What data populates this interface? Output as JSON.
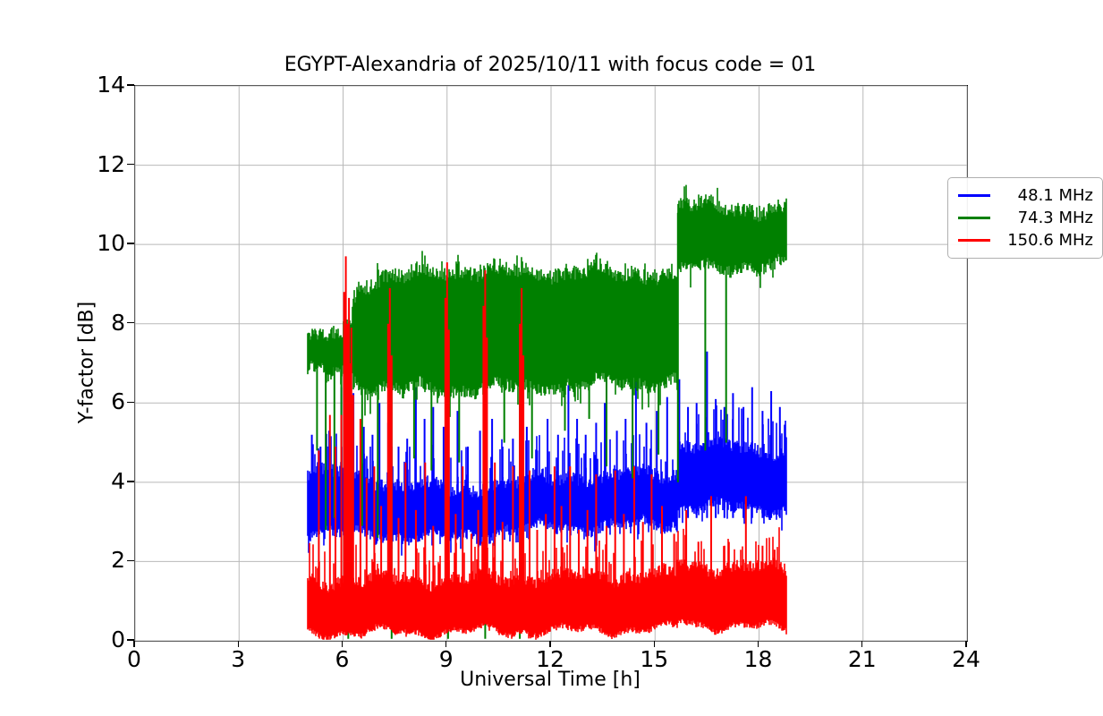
{
  "chart_data": {
    "type": "line",
    "title": "EGYPT-Alexandria of 2025/10/11 with focus code = 01",
    "xlabel": "Universal Time [h]",
    "ylabel": "Y-factor [dB]",
    "xlim": [
      0,
      24
    ],
    "ylim": [
      0,
      14
    ],
    "xticks": [
      0,
      3,
      6,
      9,
      12,
      15,
      18,
      21,
      24
    ],
    "yticks": [
      0,
      2,
      4,
      6,
      8,
      10,
      12,
      14
    ],
    "grid": true,
    "grid_color": "#b9b9b9",
    "background": "#ffffff",
    "legend_position": "upper right",
    "time_range": [
      4.98,
      18.79
    ],
    "series": [
      {
        "name": "48.1 MHz",
        "color": "#0000ff",
        "band_segments": [
          [
            4.98,
            6.3,
            2.75,
            4.35,
            2.7,
            4.2
          ],
          [
            6.3,
            9.0,
            2.7,
            4.1,
            2.6,
            3.85
          ],
          [
            9.0,
            10.3,
            2.6,
            3.7,
            2.7,
            3.85
          ],
          [
            10.3,
            15.66,
            2.8,
            4.0,
            2.95,
            4.25
          ],
          [
            15.66,
            18.79,
            3.4,
            5.0,
            3.3,
            4.75
          ]
        ],
        "spikes": [
          [
            5.1,
            5.2
          ],
          [
            5.35,
            4.9
          ],
          [
            5.6,
            5.3
          ],
          [
            5.95,
            6.4
          ],
          [
            6.3,
            6.25
          ],
          [
            6.6,
            5.4
          ],
          [
            6.85,
            5.2
          ],
          [
            7.05,
            6.0
          ],
          [
            7.3,
            5.5
          ],
          [
            7.6,
            4.9
          ],
          [
            7.85,
            5.1
          ],
          [
            8.1,
            6.4
          ],
          [
            8.35,
            5.6
          ],
          [
            8.6,
            5.9
          ],
          [
            8.9,
            5.4
          ],
          [
            9.3,
            5.8
          ],
          [
            9.6,
            4.9
          ],
          [
            9.95,
            5.3
          ],
          [
            10.3,
            5.6
          ],
          [
            10.6,
            4.9
          ],
          [
            10.9,
            5.1
          ],
          [
            11.3,
            5.4
          ],
          [
            11.6,
            4.8
          ],
          [
            11.9,
            5.6
          ],
          [
            12.2,
            5.2
          ],
          [
            12.5,
            6.45
          ],
          [
            12.75,
            5.6
          ],
          [
            13.0,
            5.2
          ],
          [
            13.3,
            5.5
          ],
          [
            13.55,
            6.0
          ],
          [
            13.9,
            5.3
          ],
          [
            14.15,
            5.6
          ],
          [
            14.45,
            6.9
          ],
          [
            14.75,
            5.5
          ],
          [
            15.05,
            5.8
          ],
          [
            15.35,
            6.15
          ],
          [
            15.7,
            6.6
          ],
          [
            15.95,
            5.9
          ],
          [
            16.2,
            6.0
          ],
          [
            16.5,
            7.3
          ],
          [
            16.75,
            6.1
          ],
          [
            17.0,
            5.9
          ],
          [
            17.25,
            6.25
          ],
          [
            17.55,
            5.9
          ],
          [
            17.8,
            6.4
          ],
          [
            18.1,
            5.8
          ],
          [
            18.35,
            6.3
          ],
          [
            18.6,
            5.9
          ]
        ]
      },
      {
        "name": "74.3 MHz",
        "color": "#008000",
        "band_segments": [
          [
            4.98,
            6.25,
            6.75,
            7.5,
            6.85,
            7.95
          ],
          [
            6.25,
            6.45,
            6.6,
            8.5,
            6.5,
            9.0
          ],
          [
            6.45,
            9.0,
            6.4,
            9.05,
            6.35,
            9.35
          ],
          [
            9.0,
            15.66,
            6.35,
            9.35,
            6.55,
            9.25
          ],
          [
            15.66,
            18.79,
            9.35,
            11.0,
            9.5,
            10.85
          ]
        ],
        "down_spikes": [
          [
            5.25,
            4.8
          ],
          [
            5.5,
            2.8
          ],
          [
            5.75,
            3.1
          ],
          [
            5.95,
            3.3
          ],
          [
            6.15,
            0.05
          ],
          [
            6.55,
            2.9
          ],
          [
            7.0,
            2.6
          ],
          [
            7.4,
            0.05
          ],
          [
            8.05,
            4.6
          ],
          [
            8.55,
            4.3
          ],
          [
            9.03,
            0.05
          ],
          [
            9.35,
            4.5
          ],
          [
            10.1,
            0.05
          ],
          [
            10.65,
            5.0
          ],
          [
            11.1,
            0.05
          ],
          [
            11.45,
            4.6
          ],
          [
            12.4,
            5.3
          ],
          [
            13.1,
            5.6
          ],
          [
            13.6,
            4.4
          ],
          [
            14.35,
            4.1
          ],
          [
            15.1,
            4.7
          ],
          [
            15.66,
            4.0
          ],
          [
            16.45,
            4.8
          ],
          [
            17.05,
            5.0
          ]
        ]
      },
      {
        "name": "150.6 MHz",
        "color": "#ff0000",
        "band_segments": [
          [
            4.98,
            12.0,
            0.2,
            1.5,
            0.25,
            1.6
          ],
          [
            12.0,
            15.66,
            0.25,
            1.6,
            0.3,
            1.65
          ],
          [
            15.66,
            16.2,
            0.5,
            2.0,
            0.45,
            1.9
          ],
          [
            16.2,
            18.79,
            0.4,
            1.85,
            0.3,
            1.85
          ]
        ],
        "spikes": [
          [
            5.3,
            4.8
          ],
          [
            5.62,
            5.7
          ],
          [
            5.78,
            4.9
          ],
          [
            5.95,
            5.7
          ],
          [
            6.08,
            9.7
          ],
          [
            6.17,
            8.65
          ],
          [
            6.24,
            7.9
          ],
          [
            6.5,
            5.6
          ],
          [
            6.68,
            4.1
          ],
          [
            6.9,
            4.4
          ],
          [
            7.1,
            3.4
          ],
          [
            7.35,
            8.9
          ],
          [
            7.6,
            3.1
          ],
          [
            7.8,
            4.5
          ],
          [
            8.1,
            3.3
          ],
          [
            8.37,
            4.5
          ],
          [
            8.6,
            2.9
          ],
          [
            9.0,
            9.55
          ],
          [
            9.25,
            3.2
          ],
          [
            9.45,
            4.4
          ],
          [
            9.7,
            2.7
          ],
          [
            9.9,
            3.3
          ],
          [
            10.1,
            9.35
          ],
          [
            10.38,
            4.5
          ],
          [
            10.6,
            3.0
          ],
          [
            10.9,
            4.4
          ],
          [
            11.15,
            8.9
          ],
          [
            11.38,
            4.3
          ],
          [
            11.6,
            2.8
          ],
          [
            11.85,
            3.2
          ],
          [
            12.1,
            4.4
          ],
          [
            12.3,
            3.4
          ],
          [
            12.55,
            4.4
          ],
          [
            12.8,
            2.8
          ],
          [
            13.05,
            3.3
          ],
          [
            13.3,
            4.2
          ],
          [
            13.6,
            2.9
          ],
          [
            13.85,
            4.3
          ],
          [
            14.1,
            3.2
          ],
          [
            14.4,
            4.4
          ],
          [
            14.65,
            3.0
          ],
          [
            14.9,
            4.2
          ],
          [
            15.2,
            3.4
          ],
          [
            15.55,
            2.7
          ],
          [
            15.9,
            3.3
          ],
          [
            16.25,
            2.5
          ],
          [
            16.62,
            3.65
          ],
          [
            17.0,
            2.4
          ],
          [
            17.62,
            3.65
          ],
          [
            18.1,
            2.4
          ],
          [
            18.45,
            2.3
          ]
        ]
      }
    ]
  }
}
